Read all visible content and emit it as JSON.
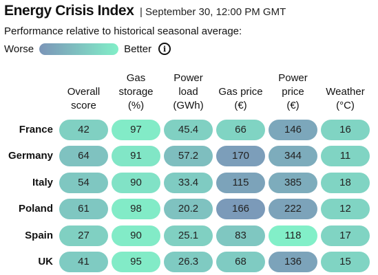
{
  "header": {
    "title": "Energy Crisis Index",
    "timestamp": "| September 30, 12:00 PM GMT",
    "subtitle": "Performance relative to historical seasonal average:"
  },
  "legend": {
    "worse_label": "Worse",
    "better_label": "Better",
    "gradient_colors": [
      "#7b95b8",
      "#82efc8"
    ],
    "info_icon": "info-icon"
  },
  "chart_data": {
    "type": "heatmap",
    "title": "Energy Crisis Index",
    "columns": [
      "Overall\nscore",
      "Gas\nstorage\n(%)",
      "Power\nload\n(GWh)",
      "Gas price\n(€)",
      "Power\nprice\n(€)",
      "Weather\n(°C)"
    ],
    "rows": [
      "France",
      "Germany",
      "Italy",
      "Poland",
      "Spain",
      "UK"
    ],
    "values": [
      [
        "42",
        "97",
        "45.4",
        "66",
        "146",
        "16"
      ],
      [
        "64",
        "91",
        "57.2",
        "170",
        "344",
        "11"
      ],
      [
        "54",
        "90",
        "33.4",
        "115",
        "385",
        "18"
      ],
      [
        "61",
        "98",
        "20.2",
        "166",
        "222",
        "12"
      ],
      [
        "27",
        "90",
        "25.1",
        "83",
        "118",
        "17"
      ],
      [
        "41",
        "95",
        "26.3",
        "68",
        "136",
        "15"
      ]
    ],
    "performance": [
      [
        0.65,
        0.95,
        0.65,
        0.7,
        0.2,
        0.7
      ],
      [
        0.5,
        0.9,
        0.45,
        0.1,
        0.25,
        0.7
      ],
      [
        0.55,
        0.85,
        0.6,
        0.15,
        0.25,
        0.7
      ],
      [
        0.55,
        0.95,
        0.5,
        0.05,
        0.15,
        0.7
      ],
      [
        0.65,
        0.95,
        0.65,
        0.55,
        1.0,
        0.7
      ],
      [
        0.6,
        0.95,
        0.6,
        0.6,
        0.15,
        0.7
      ]
    ],
    "scale": {
      "low_color": "#7b95b8",
      "high_color": "#82efc8",
      "low_label": "Worse",
      "high_label": "Better"
    }
  }
}
